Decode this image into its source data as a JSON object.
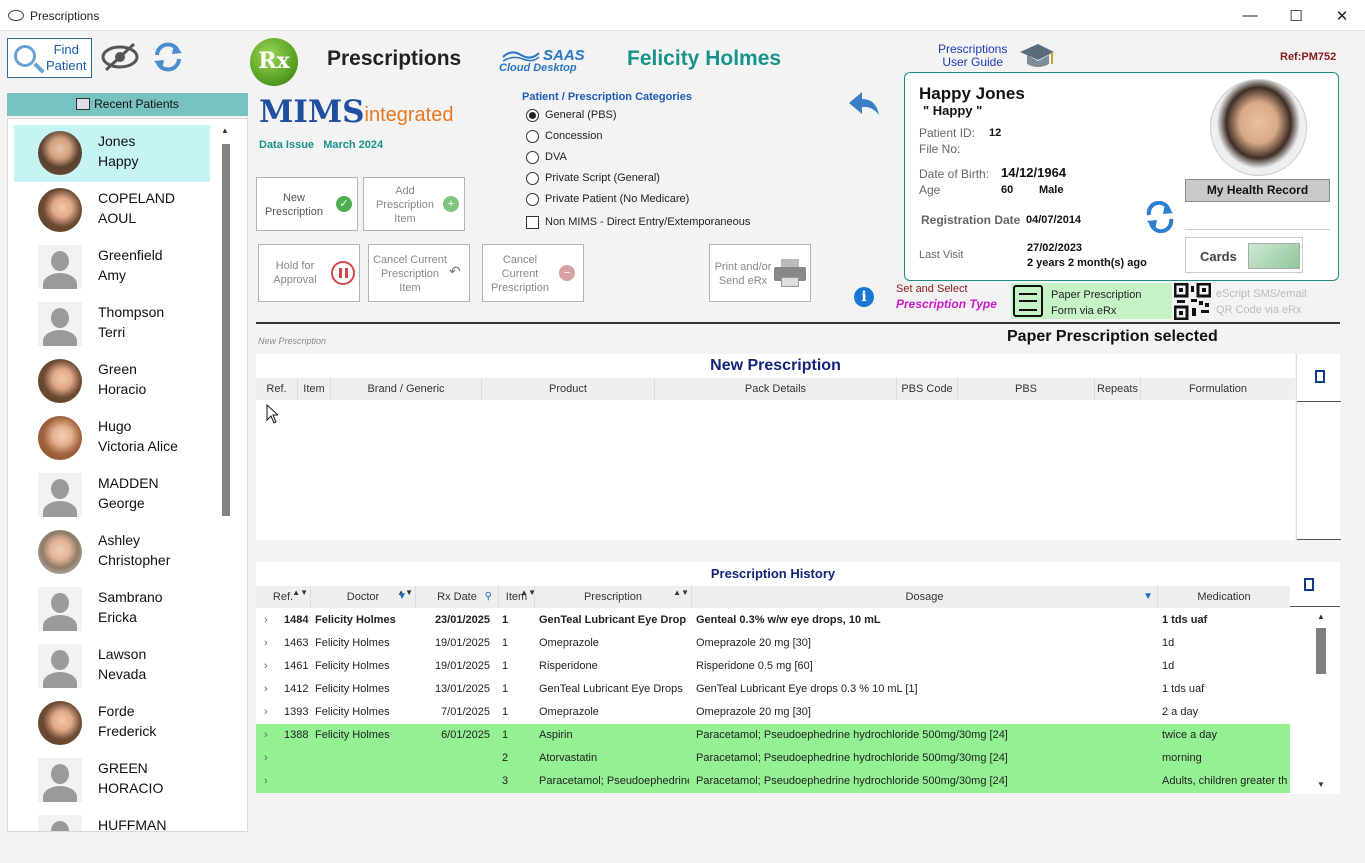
{
  "window": {
    "title": "Prescriptions"
  },
  "toolbar": {
    "find_patient_line1": "Find",
    "find_patient_line2": "Patient"
  },
  "recent_patients": {
    "header": "Recent Patients",
    "items": [
      {
        "last": "Jones",
        "first": "Happy",
        "avatar": "photo",
        "selected": true
      },
      {
        "last": "COPELAND",
        "first": "AOUL",
        "avatar": "photo-female"
      },
      {
        "last": "Greenfield",
        "first": "Amy",
        "avatar": "generic"
      },
      {
        "last": "Thompson",
        "first": "Terri",
        "avatar": "generic"
      },
      {
        "last": "Green",
        "first": "Horacio",
        "avatar": "photo-female"
      },
      {
        "last": "Hugo",
        "first": "Victoria Alice",
        "avatar": "photo-female"
      },
      {
        "last": "MADDEN",
        "first": "George",
        "avatar": "generic"
      },
      {
        "last": "Ashley",
        "first": "Christopher",
        "avatar": "photo"
      },
      {
        "last": "Sambrano",
        "first": "Ericka",
        "avatar": "generic"
      },
      {
        "last": "Lawson",
        "first": "Nevada",
        "avatar": "generic"
      },
      {
        "last": "Forde",
        "first": "Frederick",
        "avatar": "photo-female"
      },
      {
        "last": "GREEN",
        "first": "HORACIO",
        "avatar": "generic"
      },
      {
        "last": "HUFFMAN",
        "first": "",
        "avatar": "generic"
      }
    ]
  },
  "header": {
    "rx_logo": "Rx",
    "page_title": "Prescriptions",
    "saas_top": "SAAS",
    "saas_bottom": "Cloud  Desktop",
    "doctor_name": "Felicity Holmes",
    "user_guide_line1": "Prescriptions",
    "user_guide_line2": "User Guide",
    "ref": "Ref:PM752"
  },
  "mims": {
    "brand": "MIMS",
    "suffix": "integrated",
    "issue_label": "Data Issue",
    "issue_date": "March 2024"
  },
  "categories": {
    "title": "Patient / Prescription Categories",
    "options": [
      "General (PBS)",
      "Concession",
      "DVA",
      "Private Script (General)",
      "Private Patient (No Medicare)"
    ],
    "selected_index": 0,
    "checkbox_label": "Non MIMS - Direct Entry/Extemporaneous"
  },
  "actions": {
    "new_prescription": "New Prescription",
    "add_item": "Add Prescription Item",
    "hold": "Hold for Approval",
    "cancel_item": "Cancel Current Prescription Item",
    "cancel_prescription": "Cancel Current Prescription",
    "print_send": "Print and/or Send eRx"
  },
  "patient_card": {
    "name": "Happy Jones",
    "nickname": "\" Happy \"",
    "patient_id_label": "Patient ID:",
    "patient_id": "12",
    "file_no_label": "File No:",
    "dob_label": "Date of Birth:",
    "dob": "14/12/1964",
    "age_label": "Age",
    "age": "60",
    "gender": "Male",
    "reg_label": "Registration Date",
    "reg_date": "04/07/2014",
    "last_visit_label": "Last Visit",
    "last_visit_date": "27/02/2023",
    "last_visit_ago": "2 years 2 month(s) ago",
    "my_health_record": "My Health Record",
    "cards": "Cards"
  },
  "rx_type": {
    "set_select": "Set and Select",
    "prescription_type": "Prescription Type",
    "paper_line1": "Paper Prescription",
    "paper_line2": "Form via eRx",
    "escript_line1": "eScript SMS/email",
    "escript_line2": "QR Code via eRx",
    "status": "Paper Prescription selected"
  },
  "new_prescription": {
    "section_label": "New Prescription",
    "title": "New Prescription",
    "columns": [
      "Ref.",
      "Item",
      "Brand / Generic",
      "Product",
      "Pack Details",
      "PBS Code",
      "PBS",
      "Repeats",
      "Formulation"
    ]
  },
  "history": {
    "title": "Prescription History",
    "columns": [
      "Ref.",
      "Doctor",
      "Rx Date",
      "Item",
      "Prescription",
      "Dosage",
      "Medication"
    ],
    "rows": [
      {
        "ref": "1484",
        "doctor": "Felicity Holmes",
        "date": "23/01/2025",
        "item": "1",
        "prescription": "GenTeal Lubricant Eye Drop",
        "dosage": "Genteal 0.3% w/w eye drops, 10 mL",
        "medication": "1 tds uaf",
        "bold": true
      },
      {
        "ref": "1463",
        "doctor": "Felicity Holmes",
        "date": "19/01/2025",
        "item": "1",
        "prescription": "Omeprazole",
        "dosage": "Omeprazole 20 mg [30]",
        "medication": "1d"
      },
      {
        "ref": "1461",
        "doctor": "Felicity Holmes",
        "date": "19/01/2025",
        "item": "1",
        "prescription": "Risperidone",
        "dosage": "Risperidone 0.5 mg [60]",
        "medication": "1d"
      },
      {
        "ref": "1412",
        "doctor": "Felicity Holmes",
        "date": "13/01/2025",
        "item": "1",
        "prescription": "GenTeal Lubricant Eye Drops",
        "dosage": "GenTeal Lubricant Eye drops 0.3 % 10 mL [1]",
        "medication": "1 tds uaf"
      },
      {
        "ref": "1393",
        "doctor": "Felicity Holmes",
        "date": "7/01/2025",
        "item": "1",
        "prescription": "Omeprazole",
        "dosage": "Omeprazole 20 mg [30]",
        "medication": "2 a day"
      },
      {
        "ref": "1388",
        "doctor": "Felicity Holmes",
        "date": "6/01/2025",
        "item": "1",
        "prescription": "Aspirin",
        "dosage": "Paracetamol; Pseudoephedrine hydrochloride 500mg/30mg [24]",
        "medication": "twice a day",
        "highlight": true
      },
      {
        "ref": "",
        "doctor": "",
        "date": "",
        "item": "2",
        "prescription": "Atorvastatin",
        "dosage": "Paracetamol; Pseudoephedrine hydrochloride 500mg/30mg [24]",
        "medication": "morning",
        "highlight": true
      },
      {
        "ref": "",
        "doctor": "",
        "date": "",
        "item": "3",
        "prescription": "Paracetamol; Pseudoephedrine",
        "dosage": "Paracetamol; Pseudoephedrine hydrochloride 500mg/30mg [24]",
        "medication": "Adults, children greater th",
        "highlight": true
      }
    ]
  },
  "colors": {
    "accent": "#17938a",
    "highlight": "#93f093",
    "selected": "#c6f3f3"
  }
}
